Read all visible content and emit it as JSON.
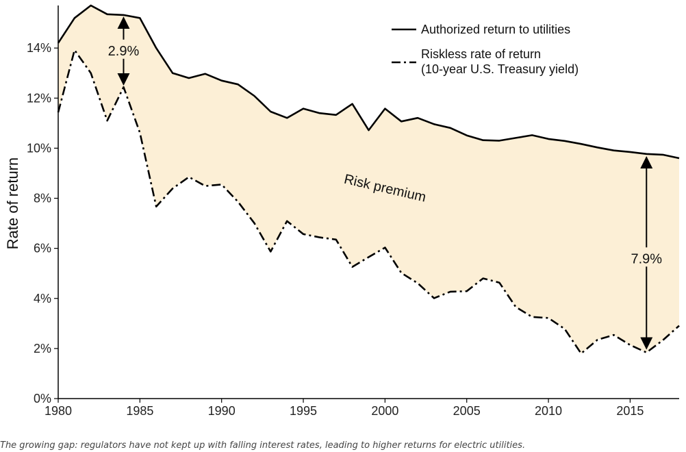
{
  "chart_data": {
    "type": "line",
    "xlabel": "",
    "ylabel": "Rate of return",
    "xlim": [
      1980,
      2018
    ],
    "ylim": [
      0,
      15.7
    ],
    "x_ticks": [
      1980,
      1985,
      1990,
      1995,
      2000,
      2005,
      2010,
      2015
    ],
    "y_ticks": [
      0,
      2,
      4,
      6,
      8,
      10,
      12,
      14
    ],
    "y_tick_suffix": "%",
    "grid": false,
    "legend_position": "top-right",
    "fill_between_color": "#fcefd6",
    "x": [
      1980,
      1981,
      1982,
      1983,
      1984,
      1985,
      1986,
      1987,
      1988,
      1989,
      1990,
      1991,
      1992,
      1993,
      1994,
      1995,
      1996,
      1997,
      1998,
      1999,
      2000,
      2001,
      2002,
      2003,
      2004,
      2005,
      2006,
      2007,
      2008,
      2009,
      2010,
      2011,
      2012,
      2013,
      2014,
      2015,
      2016,
      2017,
      2018
    ],
    "series": [
      {
        "name": "Authorized return to utilities",
        "style": "solid",
        "values": [
          14.2,
          15.2,
          15.7,
          15.35,
          15.32,
          15.2,
          14.0,
          13.0,
          12.8,
          12.97,
          12.7,
          12.55,
          12.09,
          11.46,
          11.21,
          11.58,
          11.4,
          11.33,
          11.77,
          10.72,
          11.58,
          11.07,
          11.21,
          10.96,
          10.81,
          10.51,
          10.32,
          10.3,
          10.41,
          10.52,
          10.37,
          10.29,
          10.17,
          10.03,
          9.91,
          9.85,
          9.77,
          9.74,
          9.6
        ]
      },
      {
        "name": "Riskless rate of return\n(10-year U.S. Treasury yield)",
        "style": "dashdot",
        "values": [
          11.43,
          13.92,
          13.0,
          11.1,
          12.44,
          10.62,
          7.67,
          8.39,
          8.85,
          8.49,
          8.55,
          7.86,
          7.01,
          5.87,
          7.09,
          6.57,
          6.44,
          6.35,
          5.26,
          5.65,
          6.03,
          5.02,
          4.61,
          4.01,
          4.27,
          4.29,
          4.8,
          4.63,
          3.66,
          3.26,
          3.22,
          2.78,
          1.8,
          2.35,
          2.54,
          2.14,
          1.84,
          2.33,
          2.91
        ]
      }
    ],
    "annotations": {
      "fill_label": "Risk premium",
      "gap_1984": {
        "x": 1984,
        "label": "2.9%"
      },
      "gap_2016": {
        "x": 2016,
        "label": "7.9%"
      }
    }
  },
  "caption": "The growing gap: regulators have not kept up with falling interest rates, leading to higher returns for electric utilities."
}
